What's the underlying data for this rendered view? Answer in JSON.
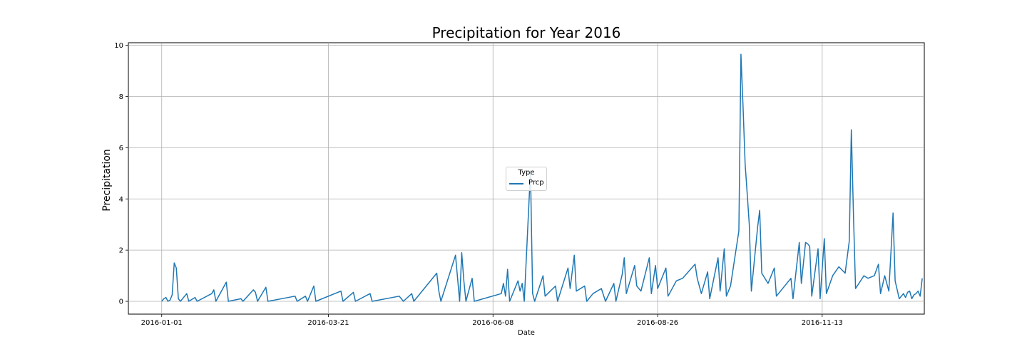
{
  "chart_data": {
    "type": "line",
    "title": "Precipitation for Year 2016",
    "xlabel": "Date",
    "ylabel": "Precipitation",
    "xlim": [
      "2015-12-16",
      "2017-01-01"
    ],
    "ylim": [
      -0.5,
      10.1
    ],
    "x_ticks": [
      "2016-01-01",
      "2016-03-21",
      "2016-06-08",
      "2016-08-26",
      "2016-11-13"
    ],
    "y_ticks": [
      0,
      2,
      4,
      6,
      8,
      10
    ],
    "grid": true,
    "legend": {
      "title": "Type",
      "placement": "center",
      "entries": [
        "Prcp"
      ]
    },
    "color": "#1f77b4",
    "series": [
      {
        "name": "Prcp",
        "points": [
          [
            "2016-01-01",
            0
          ],
          [
            "2016-01-02",
            0.1
          ],
          [
            "2016-01-03",
            0.15
          ],
          [
            "2016-01-04",
            0
          ],
          [
            "2016-01-05",
            0.05
          ],
          [
            "2016-01-06",
            0.25
          ],
          [
            "2016-01-07",
            1.5
          ],
          [
            "2016-01-08",
            1.3
          ],
          [
            "2016-01-09",
            0.1
          ],
          [
            "2016-01-10",
            0
          ],
          [
            "2016-01-13",
            0.3
          ],
          [
            "2016-01-14",
            0
          ],
          [
            "2016-01-17",
            0.15
          ],
          [
            "2016-01-18",
            0
          ],
          [
            "2016-01-25",
            0.3
          ],
          [
            "2016-01-26",
            0.45
          ],
          [
            "2016-01-27",
            0
          ],
          [
            "2016-02-01",
            0.75
          ],
          [
            "2016-02-02",
            0
          ],
          [
            "2016-02-08",
            0.1
          ],
          [
            "2016-02-09",
            0
          ],
          [
            "2016-02-14",
            0.45
          ],
          [
            "2016-02-15",
            0.35
          ],
          [
            "2016-02-16",
            0
          ],
          [
            "2016-02-20",
            0.55
          ],
          [
            "2016-02-21",
            0
          ],
          [
            "2016-03-05",
            0.2
          ],
          [
            "2016-03-06",
            0
          ],
          [
            "2016-03-10",
            0.2
          ],
          [
            "2016-03-11",
            0
          ],
          [
            "2016-03-14",
            0.6
          ],
          [
            "2016-03-15",
            0
          ],
          [
            "2016-03-27",
            0.4
          ],
          [
            "2016-03-28",
            0
          ],
          [
            "2016-04-02",
            0.35
          ],
          [
            "2016-04-03",
            0
          ],
          [
            "2016-04-10",
            0.3
          ],
          [
            "2016-04-11",
            0
          ],
          [
            "2016-04-24",
            0.2
          ],
          [
            "2016-04-25",
            0.1
          ],
          [
            "2016-04-26",
            0
          ],
          [
            "2016-04-30",
            0.3
          ],
          [
            "2016-05-01",
            0
          ],
          [
            "2016-05-12",
            1.1
          ],
          [
            "2016-05-13",
            0.4
          ],
          [
            "2016-05-14",
            0
          ],
          [
            "2016-05-21",
            1.8
          ],
          [
            "2016-05-22",
            0.9
          ],
          [
            "2016-05-23",
            0
          ],
          [
            "2016-05-24",
            1.9
          ],
          [
            "2016-05-25",
            0.8
          ],
          [
            "2016-05-26",
            0
          ],
          [
            "2016-05-29",
            0.9
          ],
          [
            "2016-05-30",
            0
          ],
          [
            "2016-06-12",
            0.3
          ],
          [
            "2016-06-13",
            0.7
          ],
          [
            "2016-06-14",
            0.2
          ],
          [
            "2016-06-15",
            1.25
          ],
          [
            "2016-06-16",
            0
          ],
          [
            "2016-06-20",
            0.8
          ],
          [
            "2016-06-21",
            0.4
          ],
          [
            "2016-06-22",
            0.7
          ],
          [
            "2016-06-23",
            0
          ],
          [
            "2016-06-26",
            5.1
          ],
          [
            "2016-06-27",
            0.3
          ],
          [
            "2016-06-28",
            0
          ],
          [
            "2016-07-01",
            0.75
          ],
          [
            "2016-07-02",
            1.0
          ],
          [
            "2016-07-03",
            0.2
          ],
          [
            "2016-07-08",
            0.6
          ],
          [
            "2016-07-09",
            0
          ],
          [
            "2016-07-14",
            1.3
          ],
          [
            "2016-07-15",
            0.5
          ],
          [
            "2016-07-17",
            1.8
          ],
          [
            "2016-07-18",
            0.4
          ],
          [
            "2016-07-22",
            0.6
          ],
          [
            "2016-07-23",
            0
          ],
          [
            "2016-07-26",
            0.3
          ],
          [
            "2016-07-30",
            0.5
          ],
          [
            "2016-08-01",
            0
          ],
          [
            "2016-08-05",
            0.7
          ],
          [
            "2016-08-06",
            0
          ],
          [
            "2016-08-09",
            1.05
          ],
          [
            "2016-08-10",
            1.7
          ],
          [
            "2016-08-11",
            0.3
          ],
          [
            "2016-08-15",
            1.4
          ],
          [
            "2016-08-16",
            0.6
          ],
          [
            "2016-08-18",
            0.4
          ],
          [
            "2016-08-22",
            1.7
          ],
          [
            "2016-08-23",
            0.3
          ],
          [
            "2016-08-25",
            1.4
          ],
          [
            "2016-08-26",
            0.5
          ],
          [
            "2016-08-30",
            1.3
          ],
          [
            "2016-08-31",
            0.2
          ],
          [
            "2016-09-04",
            0.8
          ],
          [
            "2016-09-07",
            0.9
          ],
          [
            "2016-09-13",
            1.45
          ],
          [
            "2016-09-14",
            0.9
          ],
          [
            "2016-09-16",
            0.3
          ],
          [
            "2016-09-19",
            1.15
          ],
          [
            "2016-09-20",
            0.1
          ],
          [
            "2016-09-24",
            1.7
          ],
          [
            "2016-09-25",
            0.4
          ],
          [
            "2016-09-27",
            2.05
          ],
          [
            "2016-09-28",
            0.2
          ],
          [
            "2016-09-30",
            0.6
          ],
          [
            "2016-10-04",
            2.75
          ],
          [
            "2016-10-05",
            9.65
          ],
          [
            "2016-10-06",
            7.65
          ],
          [
            "2016-10-07",
            5.35
          ],
          [
            "2016-10-08",
            4.2
          ],
          [
            "2016-10-09",
            3.0
          ],
          [
            "2016-10-10",
            0.4
          ],
          [
            "2016-10-13",
            2.9
          ],
          [
            "2016-10-14",
            3.55
          ],
          [
            "2016-10-15",
            1.1
          ],
          [
            "2016-10-18",
            0.7
          ],
          [
            "2016-10-21",
            1.3
          ],
          [
            "2016-10-22",
            0.2
          ],
          [
            "2016-10-29",
            0.9
          ],
          [
            "2016-10-30",
            0.1
          ],
          [
            "2016-11-02",
            2.3
          ],
          [
            "2016-11-03",
            0.7
          ],
          [
            "2016-11-05",
            2.3
          ],
          [
            "2016-11-06",
            2.25
          ],
          [
            "2016-11-07",
            2.15
          ],
          [
            "2016-11-08",
            0.2
          ],
          [
            "2016-11-11",
            2.05
          ],
          [
            "2016-11-12",
            0.1
          ],
          [
            "2016-11-14",
            2.45
          ],
          [
            "2016-11-15",
            0.3
          ],
          [
            "2016-11-18",
            1.0
          ],
          [
            "2016-11-21",
            1.35
          ],
          [
            "2016-11-24",
            1.1
          ],
          [
            "2016-11-26",
            2.35
          ],
          [
            "2016-11-27",
            6.7
          ],
          [
            "2016-11-28",
            3.35
          ],
          [
            "2016-11-29",
            0.5
          ],
          [
            "2016-12-03",
            1.0
          ],
          [
            "2016-12-05",
            0.9
          ],
          [
            "2016-12-08",
            1.0
          ],
          [
            "2016-12-10",
            1.45
          ],
          [
            "2016-12-11",
            0.3
          ],
          [
            "2016-12-13",
            1.0
          ],
          [
            "2016-12-15",
            0.4
          ],
          [
            "2016-12-17",
            3.45
          ],
          [
            "2016-12-18",
            0.8
          ],
          [
            "2016-12-20",
            0.1
          ],
          [
            "2016-12-22",
            0.3
          ],
          [
            "2016-12-23",
            0.15
          ],
          [
            "2016-12-24",
            0.35
          ],
          [
            "2016-12-25",
            0.4
          ],
          [
            "2016-12-26",
            0.1
          ],
          [
            "2016-12-27",
            0.25
          ],
          [
            "2016-12-28",
            0.3
          ],
          [
            "2016-12-29",
            0.4
          ],
          [
            "2016-12-30",
            0.2
          ],
          [
            "2016-12-31",
            0.9
          ]
        ]
      }
    ]
  }
}
